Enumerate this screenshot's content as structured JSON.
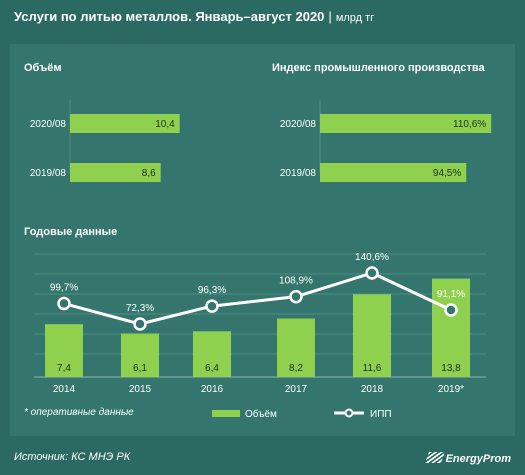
{
  "header": {
    "title": "Услуги по литью металлов. Январь–август 2020",
    "separator": "|",
    "unit": "млрд тг"
  },
  "footer": {
    "source": "Источник: КС МНЭ РК",
    "logo": "EnergyProm"
  },
  "colors": {
    "background": "#2b6a62",
    "panel": "#34766d",
    "bar": "#8fd14f",
    "line": "#ffffff",
    "text": "#ffffff",
    "grid": "#4f8d84"
  },
  "chart_data": [
    {
      "type": "bar",
      "orientation": "horizontal",
      "title": "Объём",
      "categories": [
        "2020/08",
        "2019/08"
      ],
      "values": [
        10.4,
        8.6
      ],
      "labels": [
        "10,4",
        "8,6"
      ],
      "xlim": [
        0,
        11
      ]
    },
    {
      "type": "bar",
      "orientation": "horizontal",
      "title": "Индекс промышленного производства",
      "categories": [
        "2020/08",
        "2019/08"
      ],
      "values": [
        110.6,
        94.5
      ],
      "labels": [
        "110,6%",
        "94,5%"
      ],
      "xlim": [
        0,
        115
      ]
    },
    {
      "type": "bar",
      "title": "Годовые данные",
      "categories": [
        "2014",
        "2015",
        "2016",
        "2017",
        "2018",
        "2019*"
      ],
      "series": [
        {
          "name": "Объём",
          "type": "bar",
          "values": [
            7.4,
            6.1,
            6.4,
            8.2,
            11.6,
            13.8
          ],
          "labels": [
            "7,4",
            "6,1",
            "6,4",
            "8,2",
            "11,6",
            "13,8"
          ]
        },
        {
          "name": "ИПП",
          "type": "line",
          "values": [
            99.7,
            72.3,
            96.3,
            108.9,
            140.6,
            91.1
          ],
          "labels": [
            "99,7%",
            "72,3%",
            "96,3%",
            "108,9%",
            "140,6%",
            "91,1%"
          ]
        }
      ],
      "note": "* оперативные данные",
      "grid": true,
      "legend": "bottom"
    }
  ]
}
